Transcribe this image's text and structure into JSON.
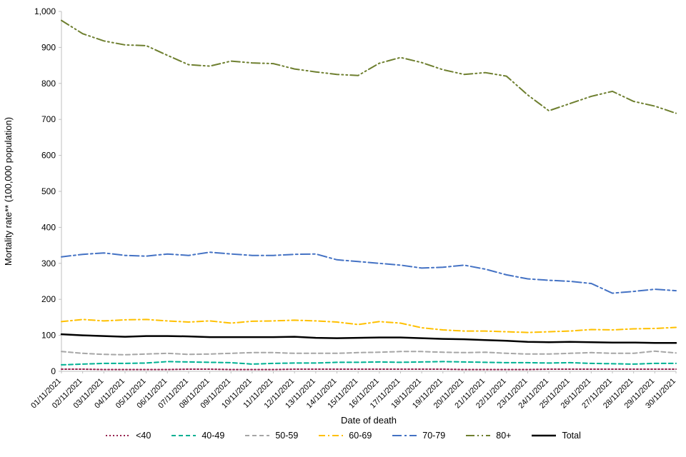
{
  "chart_data": {
    "type": "line",
    "title": "",
    "xlabel": "Date of death",
    "ylabel": "Mortality rate** (100,000 population)",
    "ylim": [
      0,
      1000
    ],
    "y_tick_step": 100,
    "y_ticks": [
      "0",
      "100",
      "200",
      "300",
      "400",
      "500",
      "600",
      "700",
      "800",
      "900",
      "1,000"
    ],
    "grid": false,
    "legend_position": "bottom",
    "x": [
      "01/11/2021",
      "02/11/2021",
      "03/11/2021",
      "04/11/2021",
      "05/11/2021",
      "06/11/2021",
      "07/11/2021",
      "08/11/2021",
      "09/11/2021",
      "10/11/2021",
      "11/11/2021",
      "12/11/2021",
      "13/11/2021",
      "14/11/2021",
      "15/11/2021",
      "16/11/2021",
      "17/11/2021",
      "18/11/2021",
      "19/11/2021",
      "20/11/2021",
      "21/11/2021",
      "22/11/2021",
      "23/11/2021",
      "24/11/2021",
      "25/11/2021",
      "26/11/2021",
      "27/11/2021",
      "28/11/2021",
      "29/11/2021",
      "30/11/2021"
    ],
    "series": [
      {
        "id": "lt40",
        "name": "<40",
        "color": "#96224e",
        "dash": "2,3",
        "width": 2,
        "values": [
          6,
          6,
          5,
          5,
          5,
          5,
          6,
          6,
          5,
          5,
          5,
          6,
          6,
          6,
          6,
          6,
          6,
          6,
          6,
          5,
          5,
          5,
          5,
          6,
          6,
          6,
          6,
          6,
          6,
          6
        ]
      },
      {
        "id": "a4049",
        "name": "40-49",
        "color": "#00b092",
        "dash": "6,4",
        "width": 2,
        "values": [
          18,
          20,
          22,
          22,
          23,
          27,
          26,
          25,
          24,
          20,
          22,
          23,
          23,
          25,
          25,
          26,
          25,
          26,
          27,
          26,
          25,
          24,
          24,
          23,
          24,
          22,
          21,
          20,
          22,
          22
        ]
      },
      {
        "id": "a5059",
        "name": "50-59",
        "color": "#a6a6a6",
        "dash": "6,4",
        "width": 2,
        "values": [
          55,
          50,
          47,
          46,
          48,
          50,
          47,
          48,
          50,
          52,
          52,
          50,
          50,
          50,
          52,
          53,
          55,
          55,
          53,
          52,
          53,
          50,
          48,
          48,
          50,
          52,
          50,
          50,
          56,
          51
        ]
      },
      {
        "id": "a6069",
        "name": "60-69",
        "color": "#ffc000",
        "dash": "9,4,2,4",
        "width": 2,
        "values": [
          138,
          144,
          140,
          143,
          144,
          140,
          137,
          140,
          134,
          139,
          140,
          142,
          140,
          137,
          130,
          138,
          134,
          121,
          115,
          112,
          112,
          110,
          108,
          110,
          112,
          116,
          115,
          118,
          119,
          122
        ]
      },
      {
        "id": "a7079",
        "name": "70-79",
        "color": "#4472c4",
        "dash": "13,4,3,4",
        "width": 2,
        "values": [
          318,
          325,
          329,
          322,
          320,
          326,
          322,
          331,
          326,
          322,
          322,
          325,
          326,
          310,
          305,
          300,
          295,
          287,
          289,
          295,
          284,
          268,
          257,
          253,
          250,
          244,
          217,
          222,
          228,
          224
        ]
      },
      {
        "id": "a80p",
        "name": "80+",
        "color": "#6e7f2f",
        "dash": "12,4,2,4,2,4",
        "width": 2,
        "values": [
          975,
          938,
          918,
          907,
          905,
          878,
          852,
          848,
          862,
          857,
          855,
          840,
          832,
          825,
          822,
          856,
          872,
          858,
          838,
          825,
          830,
          820,
          768,
          724,
          744,
          764,
          778,
          750,
          737,
          717
        ]
      },
      {
        "id": "total",
        "name": "Total",
        "color": "#000000",
        "dash": "",
        "width": 2.5,
        "values": [
          103,
          100,
          98,
          96,
          98,
          98,
          97,
          95,
          95,
          95,
          95,
          96,
          93,
          92,
          93,
          94,
          94,
          92,
          90,
          89,
          87,
          85,
          82,
          81,
          82,
          81,
          80,
          80,
          79,
          79
        ]
      }
    ]
  }
}
